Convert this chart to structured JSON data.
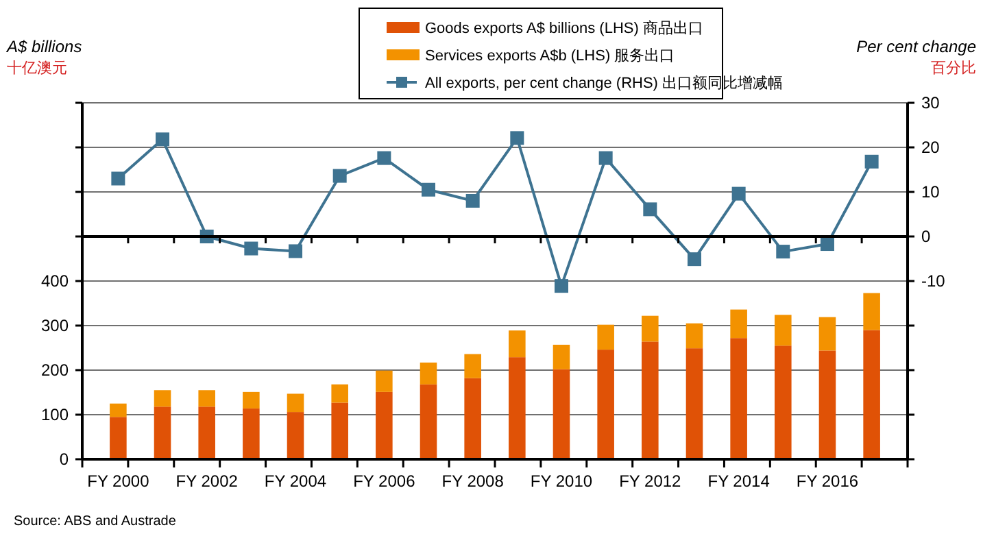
{
  "chart_data": {
    "type": "bar",
    "stacked": true,
    "categories": [
      "FY 2000",
      null,
      "FY 2002",
      null,
      "FY 2004",
      null,
      "FY 2006",
      null,
      "FY 2008",
      null,
      "FY 2010",
      null,
      "FY 2012",
      null,
      "FY 2014",
      null,
      "FY 2016",
      null
    ],
    "series": [
      {
        "name": "Goods exports A$ billions (LHS) 商品出口",
        "color": "#e05206",
        "values": [
          95,
          118,
          118,
          114,
          106,
          127,
          151,
          168,
          182,
          229,
          202,
          246,
          264,
          249,
          272,
          255,
          244,
          290
        ]
      },
      {
        "name": "Services exports A$b (LHS) 服务出口",
        "color": "#f39200",
        "values": [
          30,
          37,
          37,
          37,
          41,
          41,
          48,
          49,
          54,
          60,
          55,
          56,
          58,
          56,
          64,
          69,
          75,
          83
        ]
      },
      {
        "name": "All exports, per cent change (RHS) 出口额同比增减幅",
        "type": "line",
        "axis": "y2",
        "marker": "square",
        "color": "#3e7391",
        "values": [
          13.0,
          21.8,
          0,
          -2.7,
          -3.3,
          13.6,
          17.6,
          10.5,
          8.0,
          22.1,
          -11.1,
          17.6,
          6.1,
          -5.1,
          9.6,
          -3.4,
          -1.7,
          16.8
        ]
      }
    ],
    "ylabel": "A$ billions\n十亿澳元",
    "y2label": "Per cent change\n百分比",
    "ylim": [
      0,
      800
    ],
    "yticks": [
      0,
      100,
      200,
      300,
      400,
      {
        "value": 500,
        "label": null
      },
      {
        "value": 600,
        "label": null
      },
      {
        "value": 700,
        "label": null
      },
      {
        "value": 800,
        "label": null
      }
    ],
    "y2lim": [
      -50,
      30
    ],
    "y2ticks": [
      {
        "value": -50,
        "label": null
      },
      {
        "value": -40,
        "label": null
      },
      {
        "value": -30,
        "label": null
      },
      {
        "value": -20,
        "label": null
      },
      -10,
      0,
      10,
      20,
      30
    ],
    "grid": "y",
    "legend": "top",
    "annotations": [
      "Source: ABS and Austrade"
    ]
  }
}
